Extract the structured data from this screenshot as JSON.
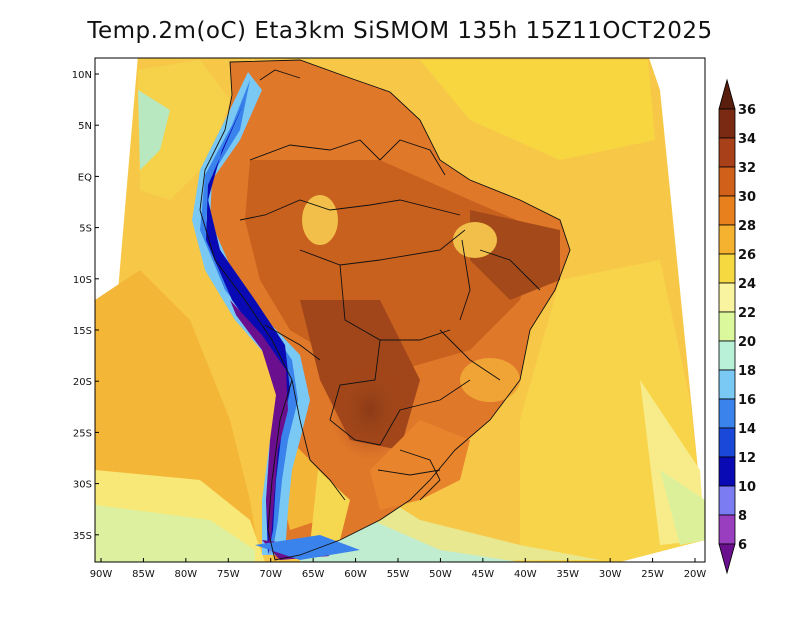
{
  "title": "Temp.2m(oC) Eta3km SiSMOM 135h 15Z11OCT2025",
  "lat_labels": [
    "10N",
    "5N",
    "EQ",
    "5S",
    "10S",
    "15S",
    "20S",
    "25S",
    "30S",
    "35S"
  ],
  "lon_labels": [
    "90W",
    "85W",
    "80W",
    "75W",
    "70W",
    "65W",
    "60W",
    "55W",
    "50W",
    "45W",
    "40W",
    "35W",
    "30W",
    "25W",
    "20W"
  ],
  "colorbar": {
    "labels": [
      "6",
      "8",
      "10",
      "12",
      "14",
      "16",
      "18",
      "20",
      "22",
      "24",
      "26",
      "28",
      "30",
      "32",
      "34",
      "36"
    ],
    "colors": [
      "#6a0f8e",
      "#9a3ec0",
      "#7c7cf2",
      "#0a0ab4",
      "#1a48d8",
      "#3a82ec",
      "#7ac8f4",
      "#b8f0d8",
      "#dcf89c",
      "#f8f4a0",
      "#f6d840",
      "#f4b230",
      "#e8801e",
      "#d0601a",
      "#a8401a",
      "#7a2a12",
      "#5a1e0e"
    ]
  }
}
